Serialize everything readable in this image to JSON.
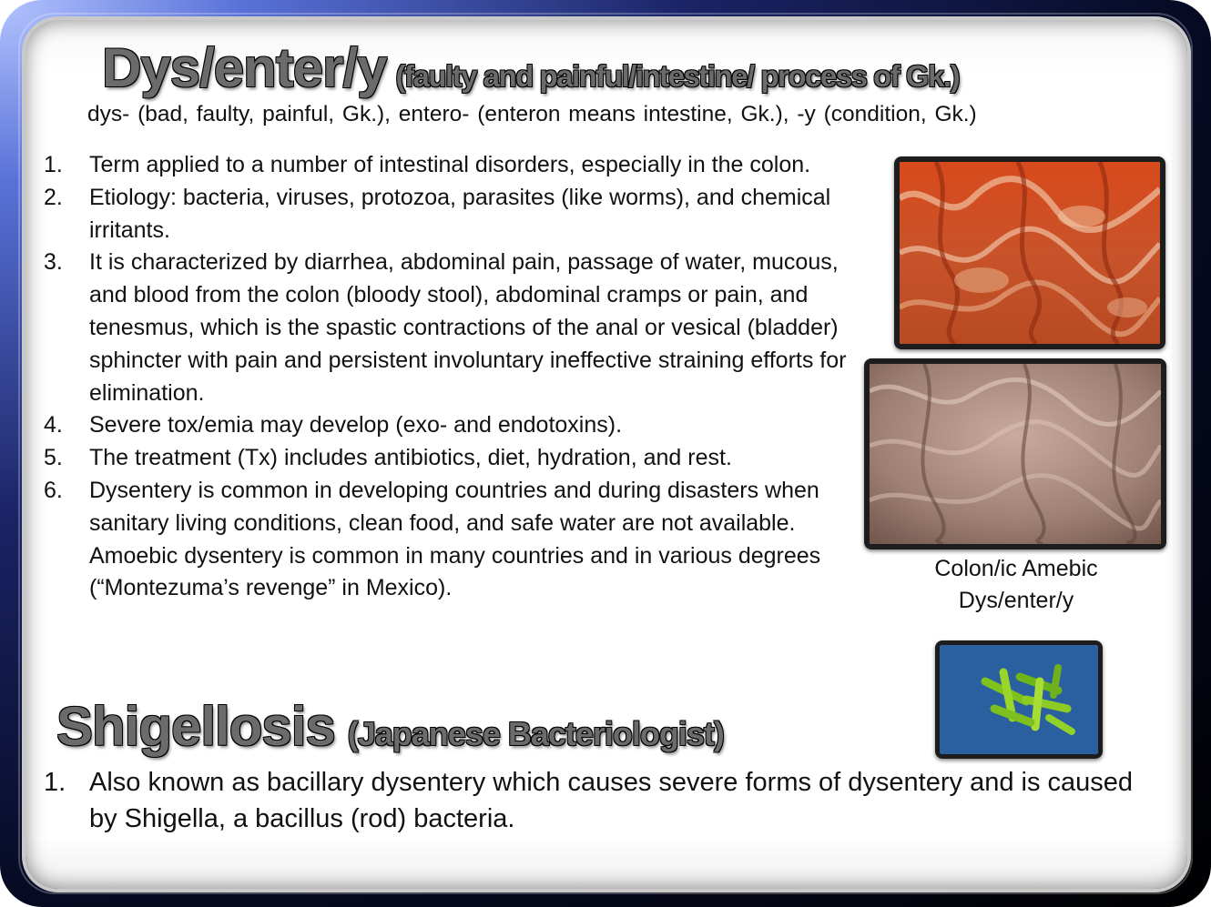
{
  "title": {
    "term": "Dys/enter/y",
    "meaning": "(faulty and painful/intestine/ process of Gk.)"
  },
  "etymology": "dys- (bad, faulty, painful, Gk.), entero- (enteron means intestine, Gk.), -y (condition, Gk.)",
  "points": [
    {
      "num": "1.",
      "text": "Term applied to a number of intestinal disorders, especially in the colon."
    },
    {
      "num": "2.",
      "text": "Etiology: bacteria, viruses, protozoa, parasites (like worms), and chemical irritants."
    },
    {
      "num": "3.",
      "text": "It is characterized by diarrhea, abdominal pain, passage of water, mucous, and blood from the colon (bloody stool), abdominal cramps or pain, and tenesmus, which is the spastic contractions of the anal or vesical (bladder) sphincter with pain and persistent involuntary ineffective straining efforts for elimination."
    },
    {
      "num": "4.",
      "text": "Severe tox/emia may develop (exo- and endotoxins)."
    },
    {
      "num": "5.",
      "text": "The treatment (Tx) includes antibiotics, diet, hydration, and rest."
    },
    {
      "num": "6.",
      "text": "Dysentery is common in developing countries and during disasters when sanitary living conditions, clean food, and safe water are not available. Amoebic dysentery is common in many countries and in various degrees (“Montezuma’s revenge” in Mexico)."
    }
  ],
  "images": {
    "colon_mucosa_red": "inflamed-colon-photo",
    "colon_mucosa_brown": "amebic-colon-photo",
    "bacteria": "shigella-bacilli-illustration"
  },
  "caption": {
    "line1": "Colon/ic Amebic",
    "line2": "Dys/enter/y"
  },
  "section2": {
    "term": "Shigellosis",
    "meaning": "(Japanese Bacteriologist)",
    "points": [
      {
        "num": "1.",
        "text": "Also known as bacillary dysentery which causes severe forms of dysentery and is caused by Shigella, a bacillus (rod) bacteria."
      }
    ]
  }
}
